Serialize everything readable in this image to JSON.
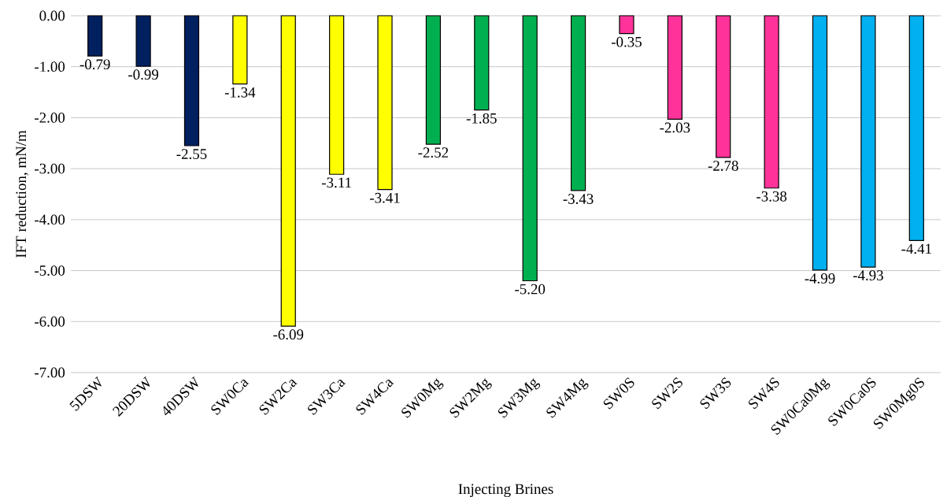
{
  "chart_data": {
    "type": "bar",
    "xlabel": "Injecting Brines",
    "ylabel": "IFT reduction, mN/m",
    "categories": [
      "5DSW",
      "20DSW",
      "40DSW",
      "SW0Ca",
      "SW2Ca",
      "SW3Ca",
      "SW4Ca",
      "SW0Mg",
      "SW2Mg",
      "SW3Mg",
      "SW4Mg",
      "SW0S",
      "SW2S",
      "SW3S",
      "SW4S",
      "SW0Ca0Mg",
      "SW0Ca0S",
      "SW0Mg0S"
    ],
    "values": [
      -0.79,
      -0.99,
      -2.55,
      -1.34,
      -6.09,
      -3.11,
      -3.41,
      -2.52,
      -1.85,
      -5.2,
      -3.43,
      -0.35,
      -2.03,
      -2.78,
      -3.38,
      -4.99,
      -4.93,
      -4.41
    ],
    "value_labels": [
      "-0.79",
      "-0.99",
      "-2.55",
      "-1.34",
      "-6.09",
      "-3.11",
      "-3.41",
      "-2.52",
      "-1.85",
      "-5.20",
      "-3.43",
      "-0.35",
      "-2.03",
      "-2.78",
      "-3.38",
      "-4.99",
      "-4.93",
      "-4.41"
    ],
    "colors": [
      "#002060",
      "#002060",
      "#002060",
      "#ffff00",
      "#ffff00",
      "#ffff00",
      "#ffff00",
      "#00b050",
      "#00b050",
      "#00b050",
      "#00b050",
      "#ff3399",
      "#ff3399",
      "#ff3399",
      "#ff3399",
      "#00b0f0",
      "#00b0f0",
      "#00b0f0"
    ],
    "ylim": [
      -7,
      0
    ],
    "yticks": [
      {
        "value": 0,
        "label": "0.00"
      },
      {
        "value": -1,
        "label": "-1.00"
      },
      {
        "value": -2,
        "label": "-2.00"
      },
      {
        "value": -3,
        "label": "-3.00"
      },
      {
        "value": -4,
        "label": "-4.00"
      },
      {
        "value": -5,
        "label": "-5.00"
      },
      {
        "value": -6,
        "label": "-6.00"
      },
      {
        "value": -7,
        "label": "-7.00"
      }
    ],
    "grid": "y"
  }
}
